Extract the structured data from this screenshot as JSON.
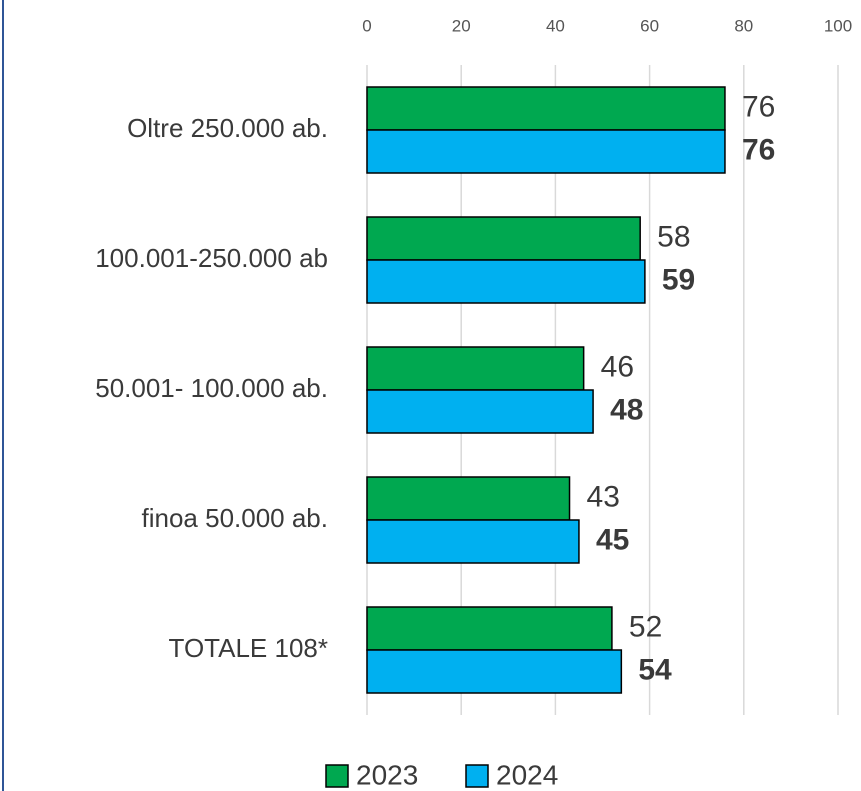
{
  "chart_data": {
    "type": "bar",
    "orientation": "horizontal",
    "categories": [
      "Oltre 250.000 ab.",
      "100.001-250.000 ab",
      "50.001- 100.000 ab.",
      "finoa 50.000 ab.",
      "TOTALE 108*"
    ],
    "series": [
      {
        "name": "2023",
        "color": "#00a850",
        "values": [
          76,
          58,
          46,
          43,
          52
        ]
      },
      {
        "name": "2024",
        "color": "#00b0f0",
        "values": [
          76,
          59,
          48,
          45,
          54
        ]
      }
    ],
    "xlim": [
      0,
      100
    ],
    "xticks": [
      0,
      20,
      40,
      60,
      80,
      100
    ],
    "grid": true,
    "legend": "bottom"
  }
}
